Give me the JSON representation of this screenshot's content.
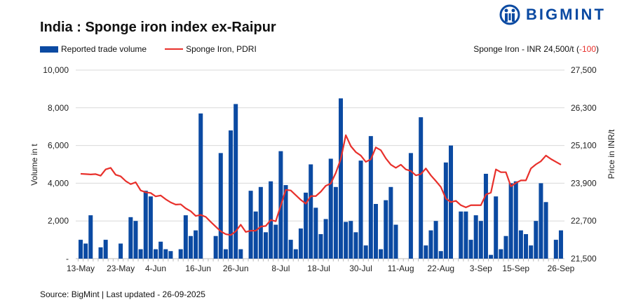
{
  "header": {
    "title": "India : Sponge iron index ex-Raipur",
    "logo_text": "BIGMINT",
    "price_note_prefix": "Sponge Iron - INR 24,500/t (",
    "price_note_change": "-100",
    "price_note_suffix": ")"
  },
  "footer": {
    "source": "Source: BigMint | Last updated - 26-09-2025"
  },
  "colors": {
    "bars": "#0b4aa2",
    "line": "#e8302b",
    "grid": "#d9d9d9"
  },
  "chart_data": {
    "type": "bar+line",
    "title": "India : Sponge iron index ex-Raipur",
    "legend": [
      "Reported trade volume",
      "Sponge Iron, PDRI"
    ],
    "legend_position": "top-left",
    "ylabel": "Volume in t",
    "y2label": "Price in INR/t",
    "ylim": [
      0,
      10000
    ],
    "y2lim": [
      21500,
      27500
    ],
    "y_ticks": [
      "-",
      "2,000",
      "4,000",
      "6,000",
      "8,000",
      "10,000"
    ],
    "y2_ticks": [
      "21,500",
      "22,700",
      "23,900",
      "25,100",
      "26,300",
      "27,500"
    ],
    "x_tick_labels": [
      {
        "label": "13-May",
        "index": 0
      },
      {
        "label": "23-May",
        "index": 8
      },
      {
        "label": "4-Jun",
        "index": 15
      },
      {
        "label": "16-Jun",
        "index": 23.5
      },
      {
        "label": "26-Jun",
        "index": 31
      },
      {
        "label": "8-Jul",
        "index": 40
      },
      {
        "label": "18-Jul",
        "index": 47.6
      },
      {
        "label": "30-Jul",
        "index": 56
      },
      {
        "label": "11-Aug",
        "index": 64
      },
      {
        "label": "22-Aug",
        "index": 72
      },
      {
        "label": "3-Sep",
        "index": 80
      },
      {
        "label": "15-Sep",
        "index": 87
      },
      {
        "label": "26-Sep",
        "index": 96
      }
    ],
    "series": [
      {
        "name": "Reported trade volume",
        "type": "bar",
        "axis": "left",
        "values": [
          1000,
          800,
          2300,
          0,
          600,
          1000,
          0,
          0,
          800,
          0,
          2200,
          2000,
          500,
          3600,
          3300,
          500,
          900,
          500,
          400,
          0,
          500,
          2300,
          1200,
          1500,
          7700,
          0,
          0,
          1200,
          5600,
          500,
          6800,
          8200,
          500,
          0,
          3600,
          2500,
          3800,
          1400,
          4100,
          1800,
          5700,
          3900,
          1000,
          500,
          1600,
          3500,
          5000,
          2700,
          1300,
          2100,
          5300,
          3800,
          8500,
          1950,
          2000,
          1400,
          5200,
          700,
          6500,
          2900,
          500,
          3100,
          3800,
          1800,
          0,
          0,
          5600,
          0,
          7500,
          700,
          1500,
          2000,
          400,
          5100,
          6000,
          0,
          2500,
          2500,
          1000,
          2300,
          2000,
          4500,
          200,
          3300,
          500,
          1200,
          4000,
          4100,
          1500,
          1300,
          700,
          2000,
          4000,
          3000,
          0,
          1000,
          1500
        ]
      },
      {
        "name": "Sponge Iron, PDRI",
        "type": "line",
        "axis": "right",
        "values": [
          24200,
          24190,
          24180,
          24190,
          24140,
          24340,
          24390,
          24170,
          24120,
          23970,
          23870,
          23930,
          23670,
          23610,
          23590,
          23480,
          23510,
          23390,
          23290,
          23220,
          23230,
          23100,
          23010,
          22860,
          22890,
          22830,
          22670,
          22520,
          22370,
          22280,
          22250,
          22370,
          22580,
          22350,
          22390,
          22390,
          22520,
          22540,
          22730,
          22690,
          23190,
          23690,
          23670,
          23520,
          23370,
          23250,
          23490,
          23490,
          23630,
          23820,
          23890,
          24230,
          24670,
          25430,
          25080,
          24890,
          24780,
          24580,
          24660,
          25040,
          24950,
          24690,
          24490,
          24390,
          24490,
          24340,
          24290,
          24150,
          24190,
          24370,
          24150,
          23970,
          23780,
          23410,
          23300,
          23340,
          23200,
          23130,
          23200,
          23200,
          23200,
          23540,
          23600,
          24340,
          24250,
          24250,
          23800,
          23910,
          23990,
          23990,
          24370,
          24500,
          24600,
          24780,
          24670,
          24580,
          24490
        ]
      }
    ]
  }
}
